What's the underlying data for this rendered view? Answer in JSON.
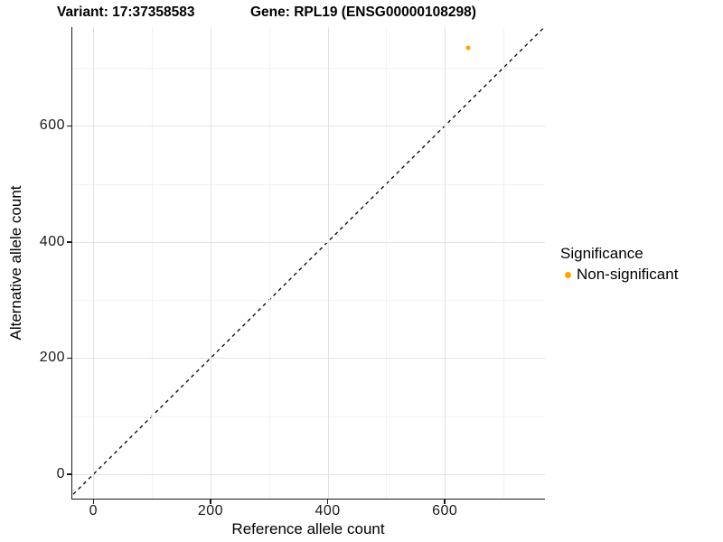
{
  "header": {
    "variant_title": "Variant: 17:37358583",
    "gene_title": "Gene: RPL19 (ENSG00000108298)"
  },
  "chart_data": {
    "type": "scatter",
    "title": "Variant: 17:37358583   Gene: RPL19 (ENSG00000108298)",
    "xlabel": "Reference allele count",
    "ylabel": "Alternative allele count",
    "xlim": [
      -36,
      771
    ],
    "ylim": [
      -42,
      770
    ],
    "x_major_ticks": [
      0,
      200,
      400,
      600
    ],
    "y_major_ticks": [
      0,
      200,
      400,
      600
    ],
    "x_minor_gridlines": [
      100,
      300,
      500,
      700
    ],
    "y_minor_gridlines": [
      100,
      300,
      500,
      700
    ],
    "grid": true,
    "reference_line": {
      "kind": "identity",
      "slope": 1,
      "intercept": 0,
      "style": "dashed",
      "color": "#000000"
    },
    "series": [
      {
        "name": "Non-significant",
        "color": "#FFA500",
        "points": [
          {
            "x": 640,
            "y": 735
          }
        ]
      }
    ],
    "legend": {
      "title": "Significance",
      "position": "right",
      "items": [
        {
          "label": "Non-significant",
          "color": "#FFA500"
        }
      ]
    },
    "colors": {
      "non_significant": "#FFA500",
      "grid_major": "#e3e3e3",
      "grid_minor": "#f2f2f2",
      "axis": "#1a1a1a"
    }
  }
}
